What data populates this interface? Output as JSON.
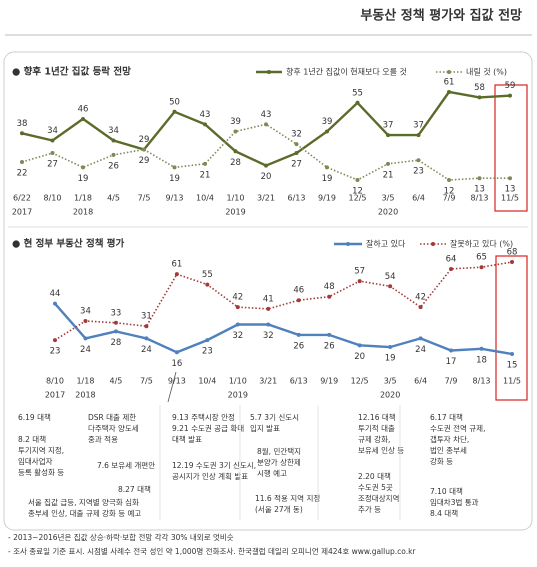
{
  "page_title": "부동산 정책 평가와 집값 전망",
  "chart_data": [
    {
      "type": "line",
      "title": "● 향후 1년간 집값 등락 전망",
      "categories": [
        "6/22",
        "8/10",
        "1/18",
        "4/5",
        "7/5",
        "9/13",
        "10/4",
        "1/10",
        "3/21",
        "6/13",
        "9/19",
        "12/5",
        "3/5",
        "6/4",
        "7/9",
        "8/13",
        "11/5"
      ],
      "x_year": [
        "2017",
        null,
        "2018",
        null,
        null,
        null,
        null,
        "2019",
        null,
        null,
        null,
        null,
        "2020",
        null,
        null,
        null,
        null
      ],
      "series": [
        {
          "name": "향후 1년간 집값이 현재보다 오를 것",
          "color": "#5b6b2a",
          "style": "solid",
          "values": [
            38,
            34,
            46,
            34,
            29,
            50,
            43,
            28,
            20,
            27,
            39,
            55,
            37,
            37,
            61,
            58,
            59
          ]
        },
        {
          "name": "내릴 것 (%)",
          "color": "#7d8a55",
          "style": "dotted",
          "values": [
            22,
            27,
            19,
            26,
            29,
            19,
            21,
            39,
            43,
            32,
            19,
            12,
            21,
            23,
            12,
            13,
            13
          ]
        }
      ]
    },
    {
      "type": "line",
      "title": "● 현 정부 부동산 정책 평가",
      "categories": [
        "8/10",
        "1/18",
        "4/5",
        "7/5",
        "9/13",
        "10/4",
        "1/10",
        "3/21",
        "6/13",
        "9/19",
        "12/5",
        "3/5",
        "6/4",
        "7/9",
        "8/13",
        "11/5"
      ],
      "x_year": [
        "2017",
        "2018",
        null,
        null,
        null,
        null,
        "2019",
        null,
        null,
        null,
        null,
        "2020",
        null,
        null,
        null,
        null
      ],
      "series": [
        {
          "name": "잘하고 있다",
          "color": "#4f81bd",
          "style": "solid",
          "values": [
            44,
            24,
            28,
            24,
            16,
            23,
            32,
            32,
            26,
            26,
            20,
            19,
            24,
            17,
            18,
            15
          ]
        },
        {
          "name": "잘못하고 있다 (%)",
          "color": "#a33a3a",
          "style": "dotted",
          "values": [
            23,
            34,
            33,
            31,
            61,
            55,
            42,
            41,
            46,
            48,
            57,
            54,
            42,
            64,
            65,
            68
          ]
        }
      ]
    }
  ],
  "annotations": [
    [
      "6.19 대책"
    ],
    [
      "8.2 대책",
      "투기지역 지정,",
      "임대사업자",
      "등록 활성화 등"
    ],
    [
      "DSR 대출 제한",
      "다주택자 양도세",
      "중과 적용"
    ],
    [
      "7.6 보유세 개편안"
    ],
    [
      "8.27 대책"
    ],
    [
      "서울 집값 급등, 지역별 양극화 심화",
      "종부세 인상, 대출 규제 강화 등 예고"
    ],
    [
      "9.13 주택시장 안정",
      "9.21 수도권 공급 확대",
      "대책 발표"
    ],
    [
      "12.19 수도권 3기 신도시,",
      "공시지가 인상 계획 발표"
    ],
    [
      "5.7 3기 신도시",
      "입지 발표"
    ],
    [
      "8월, 민간택지",
      "분양가 상한제",
      "시행 예고"
    ],
    [
      "11.6 적용 지역 지정",
      "(서울 27개 동)"
    ],
    [
      "12.16 대책",
      "투기적 대출",
      "규제 강화,",
      "보유세 인상 등"
    ],
    [
      "2.20 대책",
      "수도권 5곳",
      "조정대상지역",
      "추가 등"
    ],
    [
      "6.17 대책",
      "수도권 전역 규제,",
      "갭투자 차단,",
      "법인 종부세",
      "강화 등"
    ],
    [
      "7.10 대책",
      "임대차3법 통과",
      "8.4 대책"
    ]
  ],
  "footnotes": [
    "- 2013~2016년은 집값 상승·하락·보합 전망 각각 30% 내외로 엇비슷",
    "- 조사 종료일 기준 표시. 시점별 사례수 전국 성인 약 1,000명 전화조사. 한국갤럽 데일리 오피니언 제424호 www.gallup.co.kr"
  ]
}
